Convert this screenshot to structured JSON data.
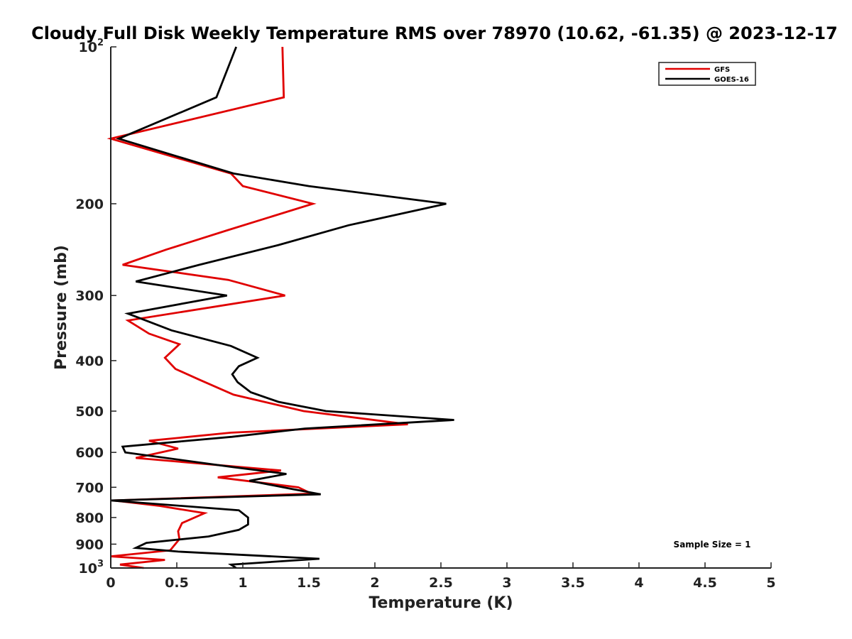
{
  "chart_data": {
    "type": "line",
    "title": "Cloudy Full Disk Weekly Temperature RMS over 78970 (10.62, -61.35) @ 2023-12-17",
    "xlabel": "Temperature (K)",
    "ylabel": "Pressure (mb)",
    "xlim": [
      0,
      5
    ],
    "ylim": [
      1000,
      100
    ],
    "y_scale": "log",
    "y_reversed": true,
    "x_ticks": [
      0,
      0.5,
      1,
      1.5,
      2,
      2.5,
      3,
      3.5,
      4,
      4.5,
      5
    ],
    "x_tick_labels": [
      "0",
      "0.5",
      "1",
      "1.5",
      "2",
      "2.5",
      "3",
      "3.5",
      "4",
      "4.5",
      "5"
    ],
    "y_ticks": [
      100,
      200,
      300,
      400,
      500,
      600,
      700,
      800,
      900,
      1000
    ],
    "y_tick_labels": [
      {
        "base": "10",
        "exp": "2"
      },
      {
        "base": "200",
        "exp": ""
      },
      {
        "base": "300",
        "exp": ""
      },
      {
        "base": "400",
        "exp": ""
      },
      {
        "base": "500",
        "exp": ""
      },
      {
        "base": "600",
        "exp": ""
      },
      {
        "base": "700",
        "exp": ""
      },
      {
        "base": "800",
        "exp": ""
      },
      {
        "base": "900",
        "exp": ""
      },
      {
        "base": "10",
        "exp": "3"
      }
    ],
    "grid": false,
    "legend_position": "top-right",
    "series": [
      {
        "name": "GFS",
        "color": "#e00000",
        "points": [
          [
            1.3,
            100
          ],
          [
            1.31,
            125
          ],
          [
            0.0,
            150
          ],
          [
            0.91,
            175
          ],
          [
            1.0,
            185
          ],
          [
            1.53,
            200
          ],
          [
            0.88,
            225
          ],
          [
            0.42,
            245
          ],
          [
            0.09,
            262
          ],
          [
            0.89,
            280
          ],
          [
            1.32,
            300
          ],
          [
            0.13,
            335
          ],
          [
            0.29,
            355
          ],
          [
            0.52,
            372
          ],
          [
            0.41,
            395
          ],
          [
            0.49,
            415
          ],
          [
            0.67,
            435
          ],
          [
            0.93,
            465
          ],
          [
            1.46,
            500
          ],
          [
            2.25,
            530
          ],
          [
            0.91,
            550
          ],
          [
            0.29,
            570
          ],
          [
            0.51,
            590
          ],
          [
            0.19,
            615
          ],
          [
            1.29,
            650
          ],
          [
            0.81,
            670
          ],
          [
            1.42,
            700
          ],
          [
            1.52,
            720
          ],
          [
            0.02,
            742
          ],
          [
            0.37,
            760
          ],
          [
            0.71,
            785
          ],
          [
            0.54,
            820
          ],
          [
            0.51,
            850
          ],
          [
            0.52,
            880
          ],
          [
            0.45,
            925
          ],
          [
            0.0,
            950
          ],
          [
            0.41,
            965
          ],
          [
            0.07,
            985
          ],
          [
            0.25,
            1000
          ]
        ]
      },
      {
        "name": "GOES-16",
        "color": "#000000",
        "points": [
          [
            0.95,
            100
          ],
          [
            0.8,
            125
          ],
          [
            0.06,
            150
          ],
          [
            0.93,
            175
          ],
          [
            1.5,
            185
          ],
          [
            2.54,
            200
          ],
          [
            1.8,
            220
          ],
          [
            1.27,
            240
          ],
          [
            0.67,
            262
          ],
          [
            0.19,
            282
          ],
          [
            0.88,
            300
          ],
          [
            0.13,
            325
          ],
          [
            0.46,
            350
          ],
          [
            0.91,
            375
          ],
          [
            1.11,
            395
          ],
          [
            0.97,
            410
          ],
          [
            0.92,
            425
          ],
          [
            0.96,
            440
          ],
          [
            1.06,
            460
          ],
          [
            1.27,
            480
          ],
          [
            1.63,
            500
          ],
          [
            2.6,
            520
          ],
          [
            1.47,
            540
          ],
          [
            0.92,
            560
          ],
          [
            0.09,
            585
          ],
          [
            0.11,
            600
          ],
          [
            0.92,
            640
          ],
          [
            1.33,
            660
          ],
          [
            1.05,
            680
          ],
          [
            1.37,
            705
          ],
          [
            1.59,
            722
          ],
          [
            0.0,
            742
          ],
          [
            0.97,
            775
          ],
          [
            1.04,
            800
          ],
          [
            1.04,
            825
          ],
          [
            0.97,
            845
          ],
          [
            0.74,
            870
          ],
          [
            0.27,
            895
          ],
          [
            0.19,
            915
          ],
          [
            0.51,
            930
          ],
          [
            1.58,
            960
          ],
          [
            0.91,
            985
          ],
          [
            0.95,
            1000
          ]
        ]
      }
    ],
    "annotations": [
      {
        "text": "Sample Size = 1",
        "position": "bottom-right"
      }
    ]
  }
}
